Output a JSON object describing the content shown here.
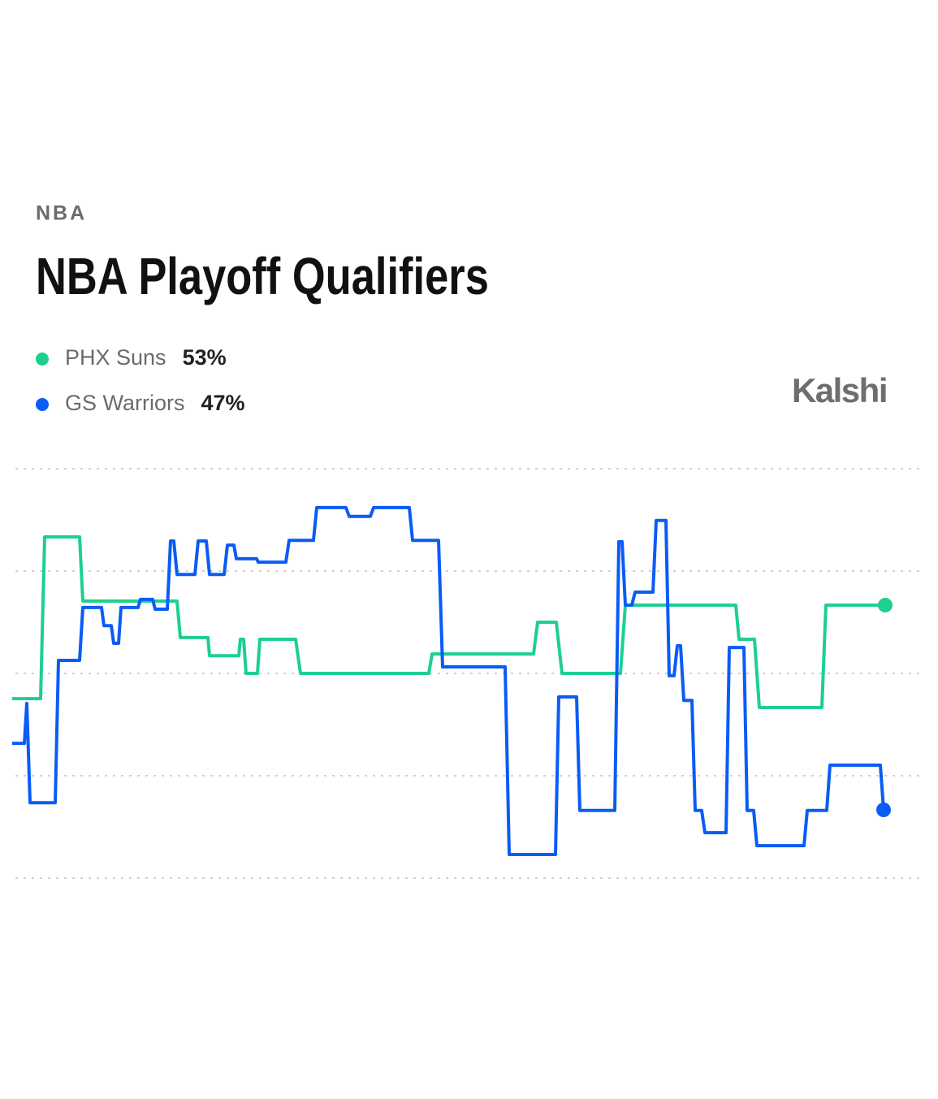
{
  "chart_data": {
    "type": "line",
    "category": "NBA",
    "title": "NBA Playoff Qualifiers",
    "brand": "Kalshi",
    "xlim": [
      15,
      1090
    ],
    "ylim": [
      45,
      57
    ],
    "yticks": [
      45,
      48,
      51,
      54,
      57
    ],
    "grid": true,
    "series": [
      {
        "name": "PHX Suns",
        "current_label": "53%",
        "color": "#1ecf8e",
        "x": [
          15,
          50,
          55,
          98,
          102,
          218,
          222,
          256,
          258,
          294,
          296,
          300,
          303,
          317,
          320,
          364,
          370,
          528,
          532,
          657,
          662,
          685,
          692,
          764,
          770,
          906,
          910,
          929,
          935,
          1012,
          1017,
          1090
        ],
        "values": [
          50.26,
          50.26,
          55.0,
          55.0,
          53.12,
          53.12,
          52.05,
          52.05,
          51.52,
          51.52,
          52.0,
          52.0,
          51.0,
          51.0,
          52.0,
          52.0,
          51.0,
          51.0,
          51.57,
          51.57,
          52.5,
          52.5,
          51.0,
          51.0,
          53.0,
          53.0,
          52.0,
          52.0,
          50.0,
          50.0,
          53.0,
          53
        ]
      },
      {
        "name": "GS Warriors",
        "current_label": "47%",
        "color": "#0a5cf5",
        "x": [
          15,
          30,
          33,
          37,
          68,
          72,
          98,
          102,
          125,
          128,
          137,
          140,
          146,
          149,
          170,
          173,
          188,
          191,
          206,
          210,
          214,
          218,
          240,
          244,
          254,
          258,
          276,
          280,
          288,
          291,
          316,
          318,
          352,
          356,
          386,
          390,
          426,
          430,
          456,
          460,
          504,
          508,
          540,
          545,
          622,
          627,
          684,
          688,
          710,
          714,
          757,
          762,
          766,
          770,
          778,
          782,
          804,
          808,
          820,
          824,
          830,
          834,
          838,
          842,
          852,
          856,
          864,
          868,
          894,
          898,
          916,
          920,
          928,
          932,
          990,
          994,
          1018,
          1022,
          1084,
          1088
        ],
        "values": [
          48.95,
          48.95,
          50.12,
          47.21,
          47.21,
          51.38,
          51.38,
          52.93,
          52.93,
          52.4,
          52.4,
          51.88,
          51.88,
          52.93,
          52.93,
          53.17,
          53.17,
          52.88,
          52.88,
          54.88,
          54.88,
          53.9,
          53.9,
          54.88,
          54.88,
          53.9,
          53.9,
          54.76,
          54.76,
          54.36,
          54.36,
          54.26,
          54.26,
          54.9,
          54.9,
          55.86,
          55.86,
          55.6,
          55.6,
          55.86,
          55.86,
          54.9,
          54.9,
          51.19,
          51.19,
          45.69,
          45.69,
          50.31,
          50.31,
          46.98,
          46.98,
          54.86,
          54.86,
          53.0,
          53.0,
          53.38,
          53.38,
          55.48,
          55.48,
          50.93,
          50.93,
          51.81,
          51.81,
          50.21,
          50.21,
          46.98,
          46.98,
          46.33,
          46.33,
          51.76,
          51.76,
          46.98,
          46.98,
          45.95,
          45.95,
          46.98,
          46.98,
          48.31,
          48.31,
          47
        ]
      }
    ]
  }
}
